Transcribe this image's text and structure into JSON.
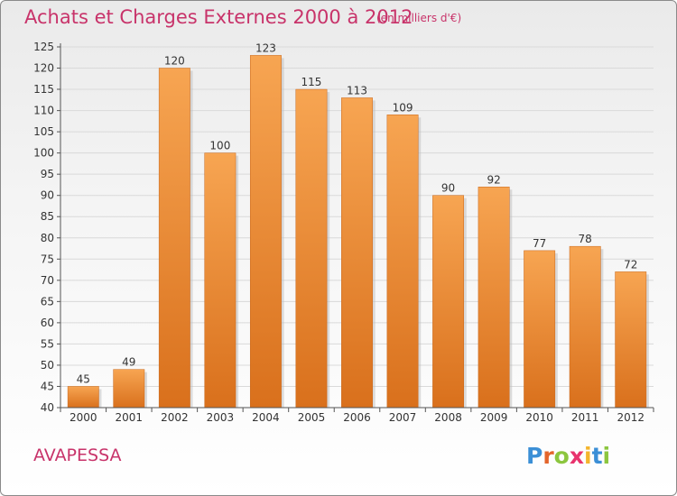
{
  "header": {
    "title": "Achats et Charges Externes 2000 à 2012",
    "subtitle": "(en milliers d'€)"
  },
  "footer": {
    "place": "AVAPESSA",
    "logo_letters": [
      {
        "char": "P",
        "color": "#3b8fd6"
      },
      {
        "char": "r",
        "color": "#e3652b"
      },
      {
        "char": "o",
        "color": "#8cc63f"
      },
      {
        "char": "x",
        "color": "#e8336d"
      },
      {
        "char": "i",
        "color": "#f4b52d"
      },
      {
        "char": "t",
        "color": "#3b8fd6"
      },
      {
        "char": "i",
        "color": "#8cc63f"
      }
    ]
  },
  "chart_data": {
    "type": "bar",
    "title": "Achats et Charges Externes 2000 à 2012",
    "subtitle": "(en milliers d'€)",
    "categories": [
      "2000",
      "2001",
      "2002",
      "2003",
      "2004",
      "2005",
      "2006",
      "2007",
      "2008",
      "2009",
      "2010",
      "2011",
      "2012"
    ],
    "values": [
      45,
      49,
      120,
      100,
      123,
      115,
      113,
      109,
      90,
      92,
      77,
      78,
      72
    ],
    "ylim": [
      40,
      125
    ],
    "yticks": [
      40,
      45,
      50,
      55,
      60,
      65,
      70,
      75,
      80,
      85,
      90,
      95,
      100,
      105,
      110,
      115,
      120,
      125
    ],
    "grid": true,
    "bar_color": "#f0923a",
    "colors": {
      "title": "#c8336a",
      "grid": "#d8d8d8",
      "axis_text": "#333333"
    }
  }
}
